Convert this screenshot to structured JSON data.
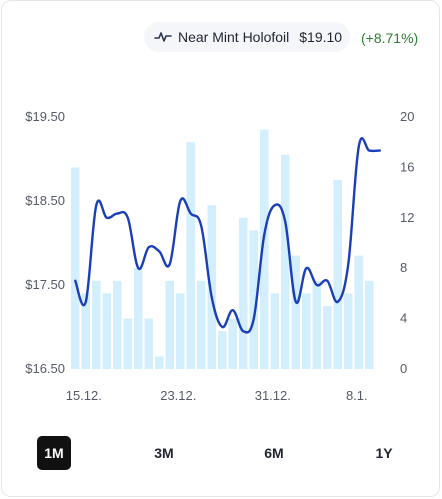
{
  "header": {
    "variant": "Near Mint Holofoil",
    "price": "$19.10",
    "change": "(+8.71%)",
    "icon": "line-chart-icon"
  },
  "ranges": [
    {
      "label": "1M",
      "active": true
    },
    {
      "label": "3M",
      "active": false
    },
    {
      "label": "6M",
      "active": false
    },
    {
      "label": "1Y",
      "active": false
    }
  ],
  "colors": {
    "line": "#1a3fb8",
    "bars": "#d3eefc",
    "change_positive": "#2e7d32",
    "active_range_bg": "#111111"
  },
  "chart_data": {
    "type": "line+bar",
    "x_tick_labels": [
      "15.12.",
      "23.12.",
      "31.12.",
      "8.1."
    ],
    "left_axis": {
      "ticks": [
        "$19.50",
        "$18.50",
        "$17.50",
        "$16.50"
      ],
      "ylim": [
        16.5,
        19.5
      ]
    },
    "right_axis": {
      "ticks": [
        "20",
        "16",
        "12",
        "8",
        "4",
        "0"
      ],
      "ylim": [
        0,
        20
      ]
    },
    "price_series": [
      17.55,
      17.3,
      18.45,
      18.3,
      18.35,
      18.3,
      17.7,
      17.95,
      17.9,
      17.75,
      18.5,
      18.35,
      18.2,
      17.35,
      17.0,
      17.2,
      16.95,
      17.1,
      18.1,
      18.45,
      18.25,
      17.3,
      17.7,
      17.5,
      17.55,
      17.3,
      17.75,
      19.15,
      19.1,
      19.1
    ],
    "volume_series": [
      16,
      6,
      7,
      6,
      7,
      4,
      8,
      4,
      1,
      7,
      6,
      18,
      7,
      13,
      3,
      4,
      12,
      11,
      19,
      6,
      17,
      9,
      6,
      7,
      5,
      15,
      6,
      9,
      7,
      0
    ]
  }
}
